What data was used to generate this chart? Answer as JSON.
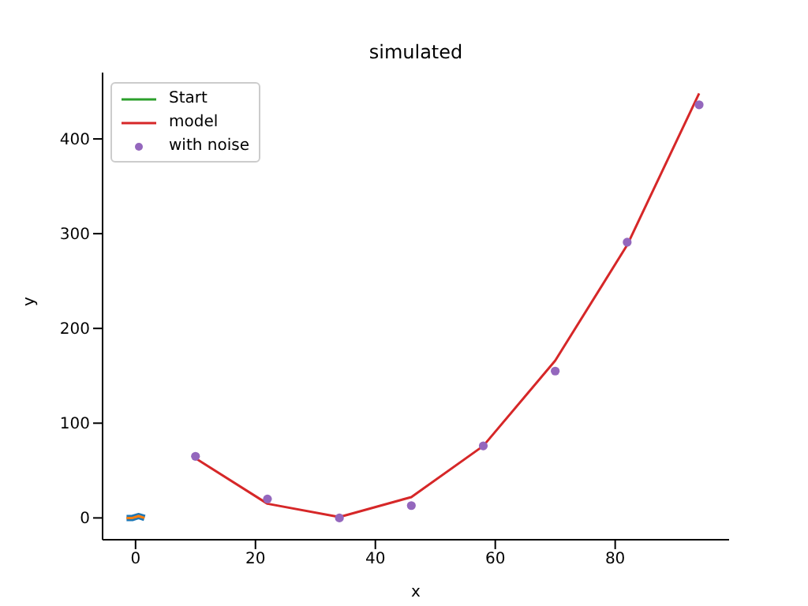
{
  "chart_data": {
    "type": "line",
    "title": "simulated",
    "xlabel": "x",
    "ylabel": "y",
    "xlim": [
      -5.5,
      99
    ],
    "ylim": [
      -23,
      470
    ],
    "xticks": [
      0,
      20,
      40,
      60,
      80
    ],
    "yticks": [
      0,
      100,
      200,
      300,
      400
    ],
    "legend": "top left",
    "series": [
      {
        "name": "Start",
        "color": "#2ca02c"
      },
      {
        "color": "#1f77b4",
        "x": [
          -1.5,
          -0.5,
          0.5,
          1.5
        ],
        "values": [
          0,
          0,
          2,
          0
        ]
      },
      {
        "color": "#ff7f0e",
        "x": [
          -1.5,
          -0.5,
          0.5,
          1.5
        ],
        "values": [
          0,
          0,
          2,
          0
        ]
      },
      {
        "name": "model",
        "color": "#d62728",
        "x": [
          10,
          22,
          34,
          46,
          58,
          70,
          82,
          94
        ],
        "values": [
          63,
          15,
          1,
          22,
          76,
          166,
          288,
          448
        ]
      },
      {
        "name": "with noise",
        "type": "scatter",
        "color": "#9467bd",
        "x": [
          10,
          22,
          34,
          46,
          58,
          70,
          82,
          94
        ],
        "values": [
          65,
          20,
          0,
          13,
          76,
          155,
          291,
          436
        ]
      }
    ]
  }
}
